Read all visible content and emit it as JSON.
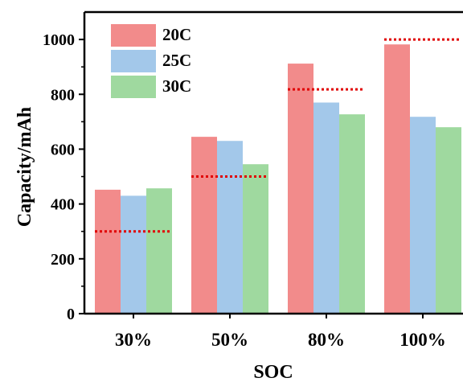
{
  "chart_data": {
    "type": "bar",
    "categories": [
      "30%",
      "50%",
      "80%",
      "100%"
    ],
    "series": [
      {
        "name": "20C",
        "values": [
          452,
          645,
          912,
          982
        ],
        "color": "#f28b8b"
      },
      {
        "name": "25C",
        "values": [
          430,
          630,
          770,
          718
        ],
        "color": "#a3c8ea"
      },
      {
        "name": "30C",
        "values": [
          457,
          545,
          727,
          680
        ],
        "color": "#9fd99f"
      }
    ],
    "reference_lines": {
      "values": [
        300,
        500,
        818,
        1000
      ],
      "color": "#e00000",
      "style": "dotted"
    },
    "xlabel": "SOC",
    "ylabel": "Capacity/mAh",
    "ylim": [
      0,
      1100
    ],
    "yticks": [
      0,
      200,
      400,
      600,
      800,
      1000
    ],
    "legend_position": "top-left",
    "grid": false
  }
}
